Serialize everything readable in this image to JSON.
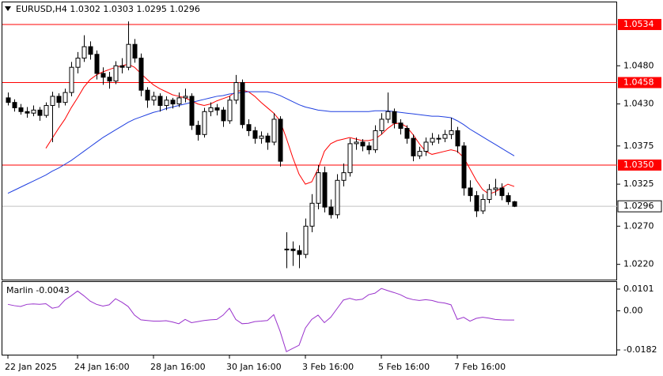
{
  "chart_data": {
    "type": "candlestick",
    "title": "EURUSD,H4  1.0302 1.0303 1.0295 1.0296",
    "up_color": "#ffffff",
    "down_color": "#000000",
    "outline_color": "#000000",
    "candles": [
      [
        1.0438,
        1.0445,
        1.0428,
        1.0432
      ],
      [
        1.0432,
        1.0436,
        1.042,
        1.0425
      ],
      [
        1.0425,
        1.043,
        1.0416,
        1.042
      ],
      [
        1.042,
        1.0426,
        1.0412,
        1.0418
      ],
      [
        1.0418,
        1.0428,
        1.0414,
        1.0422
      ],
      [
        1.0422,
        1.0426,
        1.0408,
        1.0415
      ],
      [
        1.0415,
        1.0432,
        1.0412,
        1.0428
      ],
      [
        1.0428,
        1.0446,
        1.038,
        1.044
      ],
      [
        1.044,
        1.0444,
        1.0425,
        1.0432
      ],
      [
        1.0432,
        1.045,
        1.0428,
        1.0445
      ],
      [
        1.0445,
        1.0485,
        1.044,
        1.0478
      ],
      [
        1.0478,
        1.0498,
        1.047,
        1.049
      ],
      [
        1.049,
        1.052,
        1.0485,
        1.0505
      ],
      [
        1.0505,
        1.0512,
        1.0488,
        1.0495
      ],
      [
        1.0495,
        1.05,
        1.0462,
        1.047
      ],
      [
        1.047,
        1.0478,
        1.0455,
        1.0465
      ],
      [
        1.0465,
        1.0472,
        1.045,
        1.046
      ],
      [
        1.046,
        1.0486,
        1.0456,
        1.048
      ],
      [
        1.048,
        1.049,
        1.047,
        1.0478
      ],
      [
        1.0478,
        1.0538,
        1.0474,
        1.0508
      ],
      [
        1.0508,
        1.0515,
        1.0484,
        1.049
      ],
      [
        1.049,
        1.0496,
        1.044,
        1.0448
      ],
      [
        1.0448,
        1.0452,
        1.0425,
        1.0435
      ],
      [
        1.0435,
        1.0446,
        1.0428,
        1.044
      ],
      [
        1.044,
        1.0444,
        1.042,
        1.0428
      ],
      [
        1.0428,
        1.044,
        1.0422,
        1.0435
      ],
      [
        1.0435,
        1.0438,
        1.0424,
        1.043
      ],
      [
        1.043,
        1.0445,
        1.0426,
        1.0438
      ],
      [
        1.0438,
        1.045,
        1.0432,
        1.044
      ],
      [
        1.044,
        1.0444,
        1.0396,
        1.0402
      ],
      [
        1.0402,
        1.0408,
        1.0382,
        1.039
      ],
      [
        1.039,
        1.0425,
        1.0386,
        1.042
      ],
      [
        1.042,
        1.0432,
        1.0414,
        1.0425
      ],
      [
        1.0425,
        1.043,
        1.0415,
        1.0422
      ],
      [
        1.0422,
        1.0426,
        1.04,
        1.0408
      ],
      [
        1.0408,
        1.044,
        1.0404,
        1.0435
      ],
      [
        1.0435,
        1.0468,
        1.043,
        1.0458
      ],
      [
        1.0458,
        1.0462,
        1.0398,
        1.0403
      ],
      [
        1.0403,
        1.041,
        1.0388,
        1.0395
      ],
      [
        1.0395,
        1.04,
        1.0378,
        1.0385
      ],
      [
        1.0385,
        1.0394,
        1.0378,
        1.0388
      ],
      [
        1.0388,
        1.0392,
        1.037,
        1.038
      ],
      [
        1.038,
        1.0418,
        1.0376,
        1.041
      ],
      [
        1.041,
        1.0414,
        1.0348,
        1.0355
      ],
      [
        1.024,
        1.0262,
        1.0215,
        1.024
      ],
      [
        1.024,
        1.025,
        1.0218,
        1.0238
      ],
      [
        1.0238,
        1.0245,
        1.0215,
        1.0233
      ],
      [
        1.0233,
        1.028,
        1.0228,
        1.027
      ],
      [
        1.027,
        1.0312,
        1.0262,
        1.03
      ],
      [
        1.03,
        1.035,
        1.0292,
        1.034
      ],
      [
        1.034,
        1.0348,
        1.0288,
        1.0295
      ],
      [
        1.0295,
        1.0305,
        1.028,
        1.0285
      ],
      [
        1.0285,
        1.0338,
        1.028,
        1.033
      ],
      [
        1.033,
        1.0352,
        1.0322,
        1.034
      ],
      [
        1.034,
        1.0385,
        1.0335,
        1.0378
      ],
      [
        1.0378,
        1.0386,
        1.037,
        1.038
      ],
      [
        1.038,
        1.0384,
        1.0368,
        1.0375
      ],
      [
        1.0375,
        1.038,
        1.0364,
        1.037
      ],
      [
        1.037,
        1.0402,
        1.0366,
        1.0395
      ],
      [
        1.0395,
        1.0418,
        1.039,
        1.041
      ],
      [
        1.041,
        1.0445,
        1.0405,
        1.042
      ],
      [
        1.042,
        1.0424,
        1.0398,
        1.0405
      ],
      [
        1.0405,
        1.041,
        1.039,
        1.0398
      ],
      [
        1.0398,
        1.0402,
        1.0378,
        1.0385
      ],
      [
        1.0385,
        1.039,
        1.0355,
        1.0362
      ],
      [
        1.0362,
        1.0374,
        1.0358,
        1.0368
      ],
      [
        1.0368,
        1.0386,
        1.0362,
        1.038
      ],
      [
        1.038,
        1.0392,
        1.0376,
        1.0385
      ],
      [
        1.0385,
        1.039,
        1.0378,
        1.0385
      ],
      [
        1.0385,
        1.0396,
        1.038,
        1.039
      ],
      [
        1.039,
        1.0412,
        1.0384,
        1.0395
      ],
      [
        1.0395,
        1.04,
        1.0366,
        1.0375
      ],
      [
        1.0375,
        1.038,
        1.031,
        1.032
      ],
      [
        1.032,
        1.033,
        1.0302,
        1.031
      ],
      [
        1.031,
        1.0316,
        1.0282,
        1.029
      ],
      [
        1.029,
        1.0312,
        1.0286,
        1.0305
      ],
      [
        1.0305,
        1.0325,
        1.03,
        1.0318
      ],
      [
        1.0318,
        1.0332,
        1.031,
        1.032
      ],
      [
        1.032,
        1.0326,
        1.0304,
        1.031
      ],
      [
        1.031,
        1.0314,
        1.0298,
        1.0302
      ],
      [
        1.0302,
        1.0303,
        1.0295,
        1.0296
      ]
    ],
    "overlays": [
      {
        "color": "#ff0000",
        "values": [
          null,
          null,
          null,
          null,
          null,
          null,
          1.0372,
          1.0385,
          1.0398,
          1.041,
          1.0425,
          1.0438,
          1.0452,
          1.0462,
          1.0468,
          1.0472,
          1.0475,
          1.0478,
          1.048,
          1.0482,
          1.0478,
          1.047,
          1.0462,
          1.0455,
          1.045,
          1.0446,
          1.0442,
          1.044,
          1.0438,
          1.0434,
          1.043,
          1.0428,
          1.043,
          1.0434,
          1.0437,
          1.044,
          1.0446,
          1.0448,
          1.0446,
          1.044,
          1.0432,
          1.0425,
          1.0418,
          1.0408,
          1.0385,
          1.036,
          1.0338,
          1.0325,
          1.0328,
          1.0345,
          1.0368,
          1.0378,
          1.0382,
          1.0384,
          1.0386,
          1.0384,
          1.0382,
          1.0382,
          1.0384,
          1.039,
          1.0398,
          1.0404,
          1.0405,
          1.04,
          1.039,
          1.0378,
          1.0368,
          1.0364,
          1.0366,
          1.0368,
          1.037,
          1.0368,
          1.036,
          1.0345,
          1.033,
          1.0318,
          1.0312,
          1.0315,
          1.032,
          1.0325,
          1.0322
        ]
      },
      {
        "color": "#1f3fe0",
        "values": [
          1.0313,
          1.0317,
          1.0321,
          1.0325,
          1.0329,
          1.0333,
          1.0337,
          1.0342,
          1.0346,
          1.0351,
          1.0356,
          1.0362,
          1.0368,
          1.0374,
          1.038,
          1.0386,
          1.0391,
          1.0396,
          1.0401,
          1.0406,
          1.041,
          1.0413,
          1.0416,
          1.0419,
          1.0421,
          1.0424,
          1.0426,
          1.0428,
          1.043,
          1.0432,
          1.0434,
          1.0436,
          1.0438,
          1.044,
          1.0441,
          1.0443,
          1.0444,
          1.0445,
          1.0446,
          1.0446,
          1.0446,
          1.0446,
          1.0444,
          1.0441,
          1.0437,
          1.0433,
          1.0429,
          1.0426,
          1.0424,
          1.0422,
          1.0421,
          1.042,
          1.042,
          1.042,
          1.042,
          1.042,
          1.042,
          1.042,
          1.0421,
          1.0421,
          1.0421,
          1.042,
          1.0419,
          1.0418,
          1.0417,
          1.0416,
          1.0415,
          1.0414,
          1.0414,
          1.0413,
          1.0412,
          1.0408,
          1.0403,
          1.0397,
          1.0392,
          1.0387,
          1.0382,
          1.0377,
          1.0372,
          1.0367,
          1.0362
        ]
      }
    ],
    "ylim": [
      1.02,
      1.0563
    ],
    "yticks": [
      {
        "value": 1.048,
        "label": "1.0480"
      },
      {
        "value": 1.043,
        "label": "1.0430"
      },
      1.0375,
      1.0325,
      {
        "value": 1.027,
        "label": "1.0270"
      },
      {
        "value": 1.022,
        "label": "1.0220"
      }
    ],
    "levels": [
      1.0534,
      1.0458,
      {
        "value": 1.035,
        "label": "1.0350"
      }
    ],
    "level_color": "#ff0000",
    "last_price": 1.0296,
    "grid": false,
    "xticks": [
      {
        "value": 0,
        "label": "22 Jan 2025"
      },
      {
        "value": 11,
        "label": "24 Jan 16:00"
      },
      {
        "value": 23,
        "label": "28 Jan 16:00"
      },
      {
        "value": 35,
        "label": "30 Jan 16:00"
      },
      {
        "value": 47,
        "label": "3 Feb 16:00"
      },
      {
        "value": 59,
        "label": "5 Feb 16:00"
      },
      {
        "value": 71,
        "label": "7 Feb 16:00"
      }
    ],
    "indicator": {
      "label": "Marlin -0.0043",
      "color": "#9932cc",
      "values": [
        0.003,
        0.0024,
        0.002,
        0.003,
        0.0032,
        0.003,
        0.0033,
        0.0012,
        0.0018,
        0.005,
        0.007,
        0.0092,
        0.007,
        0.0045,
        0.003,
        0.0022,
        0.0028,
        0.0056,
        0.004,
        0.002,
        -0.002,
        -0.0042,
        -0.0045,
        -0.0048,
        -0.0048,
        -0.0046,
        -0.0052,
        -0.006,
        -0.004,
        -0.0055,
        -0.005,
        -0.0045,
        -0.0042,
        -0.004,
        -0.002,
        0.0012,
        -0.004,
        -0.006,
        -0.0058,
        -0.005,
        -0.0048,
        -0.0045,
        -0.0018,
        -0.0095,
        -0.019,
        -0.0175,
        -0.016,
        -0.008,
        -0.004,
        -0.002,
        -0.0055,
        -0.003,
        0.001,
        0.005,
        0.0058,
        0.005,
        0.0054,
        0.0075,
        0.0082,
        0.0104,
        0.0094,
        0.0085,
        0.0075,
        0.006,
        0.0052,
        0.0048,
        0.0052,
        0.0048,
        0.004,
        0.0036,
        0.0028,
        -0.004,
        -0.003,
        -0.0048,
        -0.0035,
        -0.003,
        -0.0034,
        -0.004,
        -0.0042,
        -0.0043,
        -0.0043
      ],
      "ylim": [
        -0.0204,
        0.0134
      ],
      "yticks": [
        0.0101,
        {
          "value": 0,
          "label": "0.00"
        },
        -0.0182
      ]
    }
  }
}
